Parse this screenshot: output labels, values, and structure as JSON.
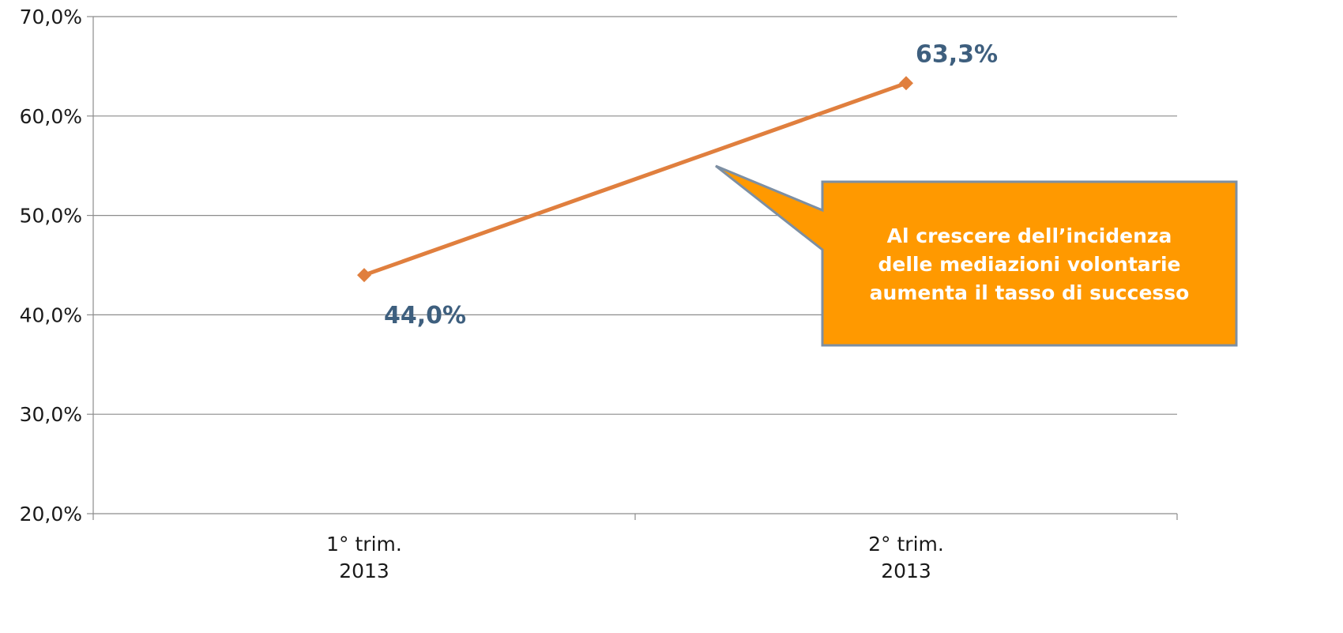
{
  "chart_data": {
    "type": "line",
    "categories": [
      [
        "1° trim.",
        "2013"
      ],
      [
        "2° trim.",
        "2013"
      ]
    ],
    "series": [
      {
        "values": [
          44.0,
          63.3
        ],
        "data_labels": [
          "44,0%",
          "63,3%"
        ],
        "color": "#e07f3e"
      }
    ],
    "yticks": [
      "70,0%",
      "60,0%",
      "50,0%",
      "40,0%",
      "30,0%",
      "20,0%"
    ],
    "ytick_values": [
      70,
      60,
      50,
      40,
      30,
      20
    ],
    "ylim": [
      20,
      70
    ],
    "grid": true,
    "title": "",
    "xlabel": "",
    "ylabel": "",
    "annotation": {
      "lines": [
        "Al crescere dell’incidenza",
        "delle mediazioni volontarie",
        "aumenta il tasso di successo"
      ],
      "fill": "#ff9900",
      "border": "#7d8fa3"
    },
    "colors": {
      "grid": "#8c8c8c",
      "axis": "#8c8c8c",
      "data_label": "#3e5f7e",
      "line": "#e07f3e"
    }
  }
}
